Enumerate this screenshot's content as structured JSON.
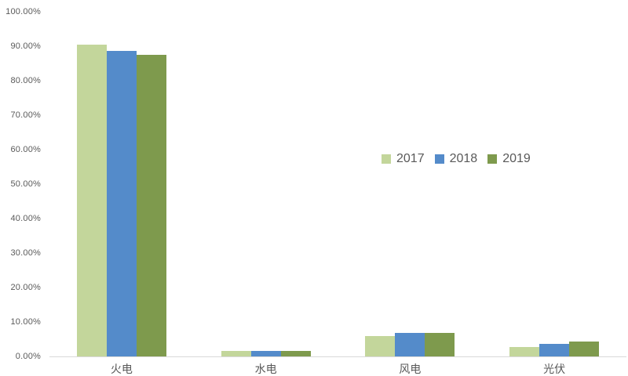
{
  "chart_data": {
    "type": "bar",
    "categories": [
      "火电",
      "水电",
      "风电",
      "光伏"
    ],
    "series": [
      {
        "name": "2017",
        "color": "#c3d69b",
        "values": [
          90.5,
          1.7,
          5.9,
          2.8
        ]
      },
      {
        "name": "2018",
        "color": "#548bca",
        "values": [
          88.6,
          1.7,
          6.9,
          3.6
        ]
      },
      {
        "name": "2019",
        "color": "#7e9a4d",
        "values": [
          87.4,
          1.7,
          6.8,
          4.4
        ]
      }
    ],
    "ylim": [
      0,
      100
    ],
    "y_ticks": [
      "100.00%",
      "90.00%",
      "80.00%",
      "70.00%",
      "60.00%",
      "50.00%",
      "40.00%",
      "30.00%",
      "20.00%",
      "10.00%",
      "0.00%"
    ],
    "grid": false,
    "legend_position": "middle-right",
    "colors": {
      "axis_line": "#d9d9d9",
      "label_text": "#595959",
      "background": "#ffffff"
    }
  }
}
